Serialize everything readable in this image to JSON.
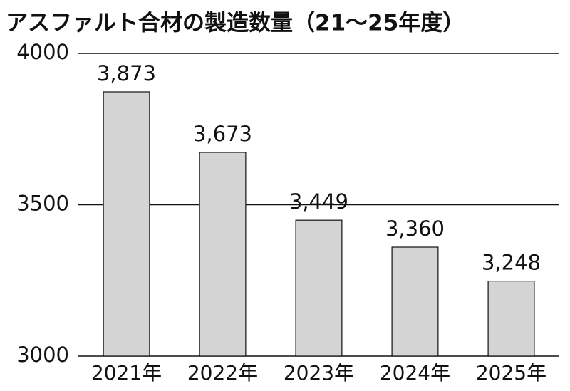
{
  "chart_data": {
    "type": "bar",
    "title": "アスファルト合材の製造数量（21～25年度）",
    "categories": [
      "2021年",
      "2022年",
      "2023年",
      "2024年",
      "2025年"
    ],
    "values": [
      3873,
      3673,
      3449,
      3360,
      3248
    ],
    "value_labels": [
      "3,873",
      "3,673",
      "3,449",
      "3,360",
      "3,248"
    ],
    "color": "#d4d4d4",
    "ylim": [
      3000,
      4000
    ],
    "yticks": [
      3000,
      3500,
      4000
    ],
    "grid": true
  }
}
